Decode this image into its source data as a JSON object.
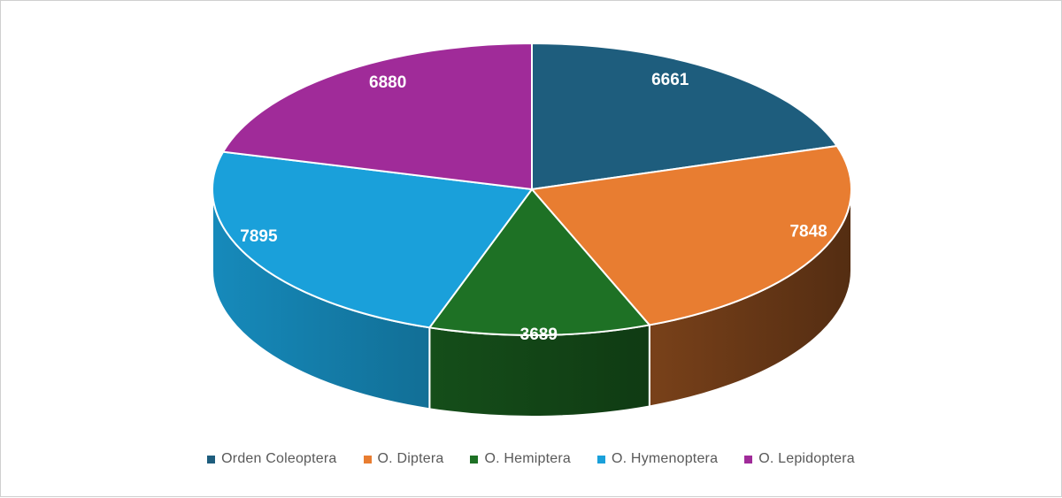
{
  "canvas": {
    "background": "#ffffff",
    "border_color": "#cfcfcf"
  },
  "chart_data": {
    "type": "pie",
    "effect": "3d",
    "title": "",
    "categories": [
      "Orden Coleoptera",
      "O. Diptera",
      "O. Hemiptera",
      "O. Hymenoptera",
      "O. Lepidoptera"
    ],
    "values": [
      6661,
      7848,
      3689,
      7895,
      6880
    ],
    "data_labels": [
      "6661",
      "7848",
      "3689",
      "7895",
      "6880"
    ],
    "colors": [
      "#1E5D7D",
      "#E87D31",
      "#1E7125",
      "#1AA0DA",
      "#A02B99"
    ],
    "start_angle_deg": 0,
    "direction": "clockwise",
    "grid": false,
    "legend_position": "bottom",
    "data_label_style": {
      "color": "#ffffff",
      "bold": true,
      "placement": "inside"
    }
  },
  "legend": {
    "text_color": "#595959"
  }
}
